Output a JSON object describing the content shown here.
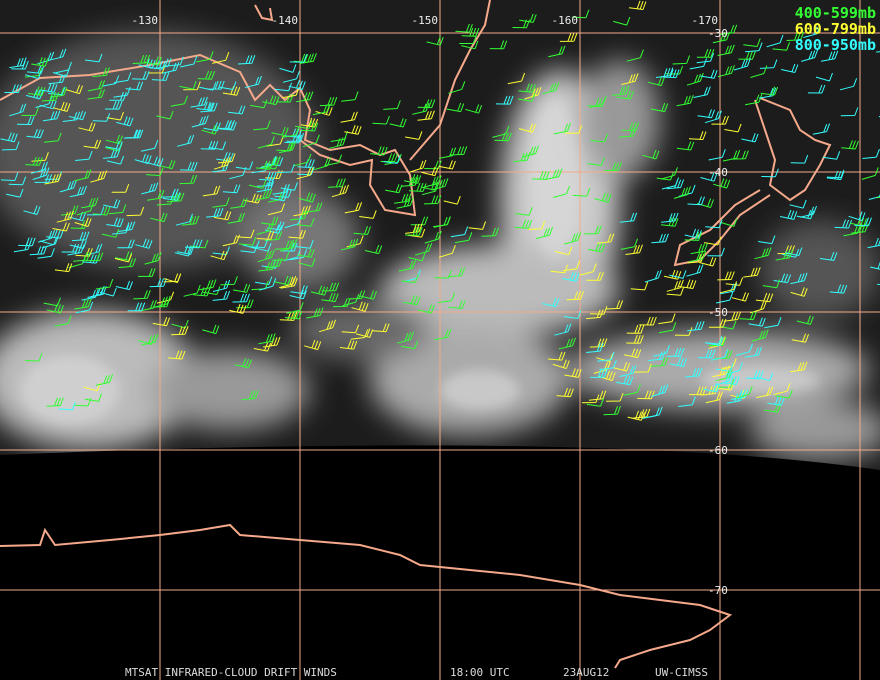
{
  "map": {
    "longitude_labels": [
      "-130",
      "-140",
      "-150",
      "-160",
      "-170"
    ],
    "latitude_labels": [
      "-30",
      "-40",
      "-50",
      "-60",
      "-70"
    ],
    "legend": [
      {
        "label": "400-599mb",
        "color": "#33ff33"
      },
      {
        "label": "600-799mb",
        "color": "#ffff33"
      },
      {
        "label": "800-950mb",
        "color": "#33ffff"
      }
    ],
    "footer": [
      "MTSAT INFRARED-CLOUD DRIFT WINDS",
      "18:00 UTC",
      "23AUG12",
      "UW-CIMSS"
    ]
  }
}
